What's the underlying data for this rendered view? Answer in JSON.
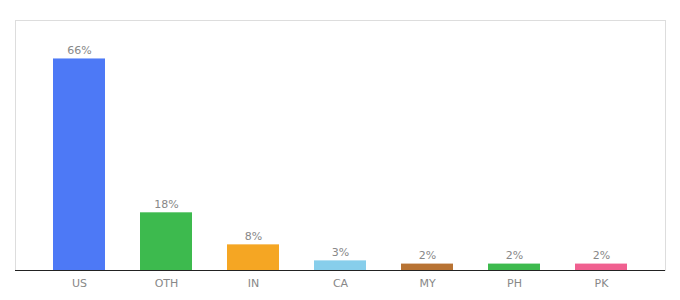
{
  "chart_data": {
    "type": "bar",
    "categories": [
      "US",
      "OTH",
      "IN",
      "CA",
      "MY",
      "PH",
      "PK"
    ],
    "values": [
      66,
      18,
      8,
      3,
      2,
      2,
      2
    ],
    "value_labels": [
      "66%",
      "18%",
      "8%",
      "3%",
      "2%",
      "2%",
      "2%"
    ],
    "colors": [
      "#4d79f6",
      "#3dba4e",
      "#f5a623",
      "#87ceeb",
      "#b87333",
      "#3dba4e",
      "#f06090"
    ],
    "ylim": [
      0,
      78
    ],
    "data_labels": true,
    "tick_labels": "x",
    "grid": false
  }
}
